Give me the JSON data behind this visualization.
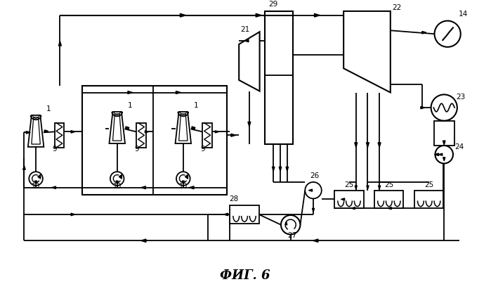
{
  "title": "ФИГ. 6",
  "bg_color": "#ffffff",
  "fig_width": 6.99,
  "fig_height": 4.11,
  "dpi": 100
}
